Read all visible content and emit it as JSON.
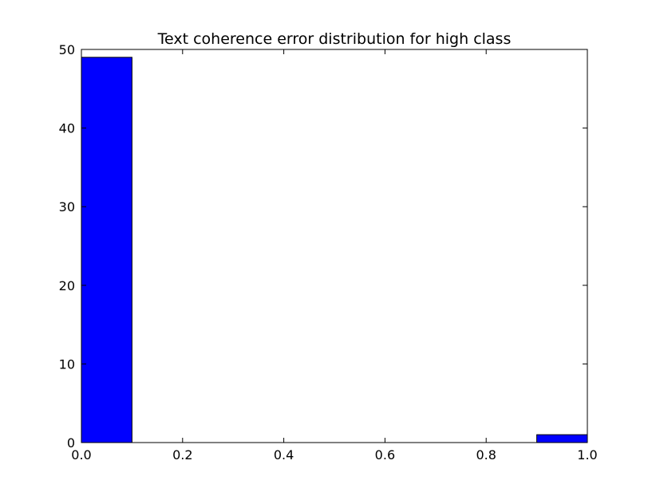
{
  "chart_data": {
    "type": "bar",
    "title": "Text coherence error distribution for high class",
    "xlabel": "",
    "ylabel": "",
    "xlim": [
      0.0,
      1.0
    ],
    "ylim": [
      0,
      50
    ],
    "bins": [
      {
        "x0": 0.0,
        "x1": 0.1,
        "value": 49
      },
      {
        "x0": 0.1,
        "x1": 0.2,
        "value": 0
      },
      {
        "x0": 0.2,
        "x1": 0.3,
        "value": 0
      },
      {
        "x0": 0.3,
        "x1": 0.4,
        "value": 0
      },
      {
        "x0": 0.4,
        "x1": 0.5,
        "value": 0
      },
      {
        "x0": 0.5,
        "x1": 0.6,
        "value": 0
      },
      {
        "x0": 0.6,
        "x1": 0.7,
        "value": 0
      },
      {
        "x0": 0.7,
        "x1": 0.8,
        "value": 0
      },
      {
        "x0": 0.8,
        "x1": 0.9,
        "value": 0
      },
      {
        "x0": 0.9,
        "x1": 1.0,
        "value": 1
      }
    ],
    "xticks": [
      0.0,
      0.2,
      0.4,
      0.6,
      0.8,
      1.0
    ],
    "xtick_labels": [
      "0.0",
      "0.2",
      "0.4",
      "0.6",
      "0.8",
      "1.0"
    ],
    "yticks": [
      0,
      10,
      20,
      30,
      40,
      50
    ],
    "ytick_labels": [
      "0",
      "10",
      "20",
      "30",
      "40",
      "50"
    ],
    "bar_color": "#0000ff",
    "edge_color": "#000000",
    "grid": false
  }
}
